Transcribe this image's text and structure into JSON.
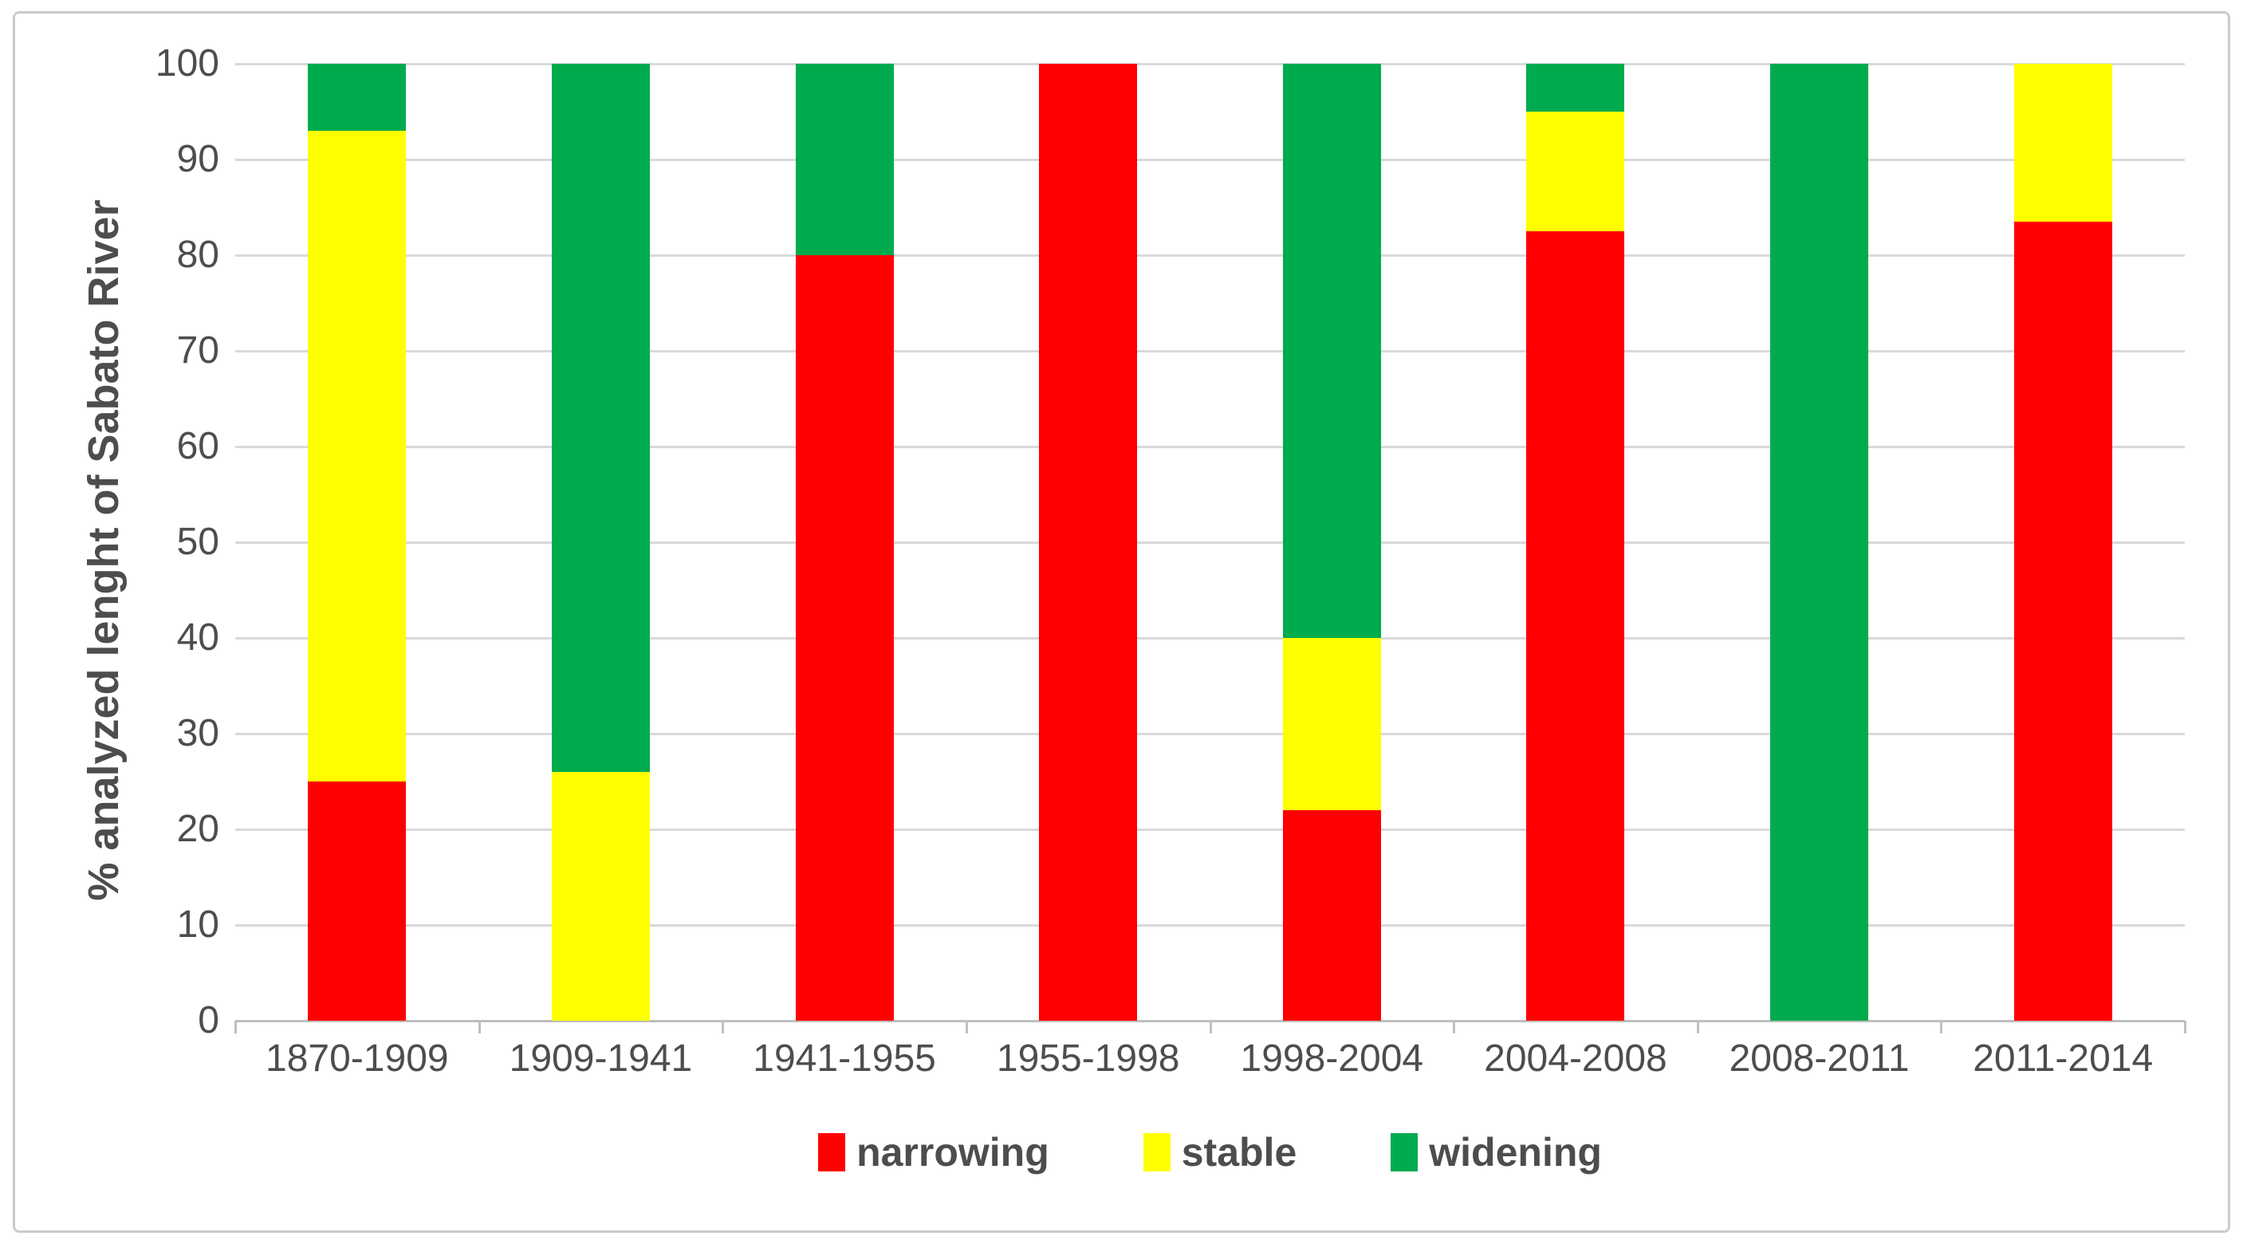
{
  "chart_data": {
    "type": "bar",
    "stacked": true,
    "orientation": "vertical",
    "title": "",
    "xlabel": "",
    "ylabel": "% analyzed lenght of Sabato River",
    "ylim": [
      0,
      100
    ],
    "yticks": [
      0,
      10,
      20,
      30,
      40,
      50,
      60,
      70,
      80,
      90,
      100
    ],
    "grid": true,
    "categories": [
      "1870-1909",
      "1909-1941",
      "1941-1955",
      "1955-1998",
      "1998-2004",
      "2004-2008",
      "2008-2011",
      "2011-2014"
    ],
    "series": [
      {
        "name": "narrowing",
        "color": "#FF0000",
        "values": [
          25,
          0,
          80,
          100,
          22,
          82.5,
          0,
          83.5
        ]
      },
      {
        "name": "stable",
        "color": "#FFFF00",
        "values": [
          68,
          26,
          0,
          0,
          18,
          12.5,
          0,
          16.5
        ]
      },
      {
        "name": "widening",
        "color": "#00AB4E",
        "values": [
          7,
          74,
          20,
          0,
          60,
          5,
          100,
          0
        ]
      }
    ],
    "legend": {
      "position": "bottom",
      "items": [
        "narrowing",
        "stable",
        "widening"
      ]
    },
    "colors": {
      "gridline": "#D9D9D9",
      "axis_line": "#BFBFBF",
      "text": "#4D4D4D",
      "background": "#FFFFFF",
      "border": "#CBCBCB"
    }
  }
}
